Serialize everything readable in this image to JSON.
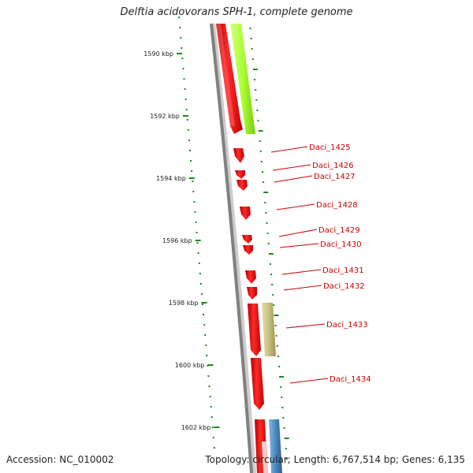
{
  "title": "Delftia acidovorans SPH-1, complete genome",
  "accession": "Accession: NC_010002",
  "topology": "Topology: circular; Length: 6,767,514 bp; Genes: 6,135",
  "ticks": [
    {
      "label": "1590 kbp"
    },
    {
      "label": "1592 kbp"
    },
    {
      "label": "1594 kbp"
    },
    {
      "label": "1596 kbp"
    },
    {
      "label": "1598 kbp"
    },
    {
      "label": "1600 kbp"
    },
    {
      "label": "1602 kbp"
    }
  ],
  "genes": [
    "Daci_1425",
    "Daci_1426",
    "Daci_1427",
    "Daci_1428",
    "Daci_1429",
    "Daci_1430",
    "Daci_1431",
    "Daci_1432",
    "Daci_1433",
    "Daci_1434"
  ],
  "colors": {
    "cds": "#ff1a1a",
    "label": "#cc0000",
    "tick": "#1a8a1a",
    "backbone": "#808080",
    "lime": "#aaff33",
    "khaki": "#c8c080",
    "blue": "#4a8ac0"
  }
}
